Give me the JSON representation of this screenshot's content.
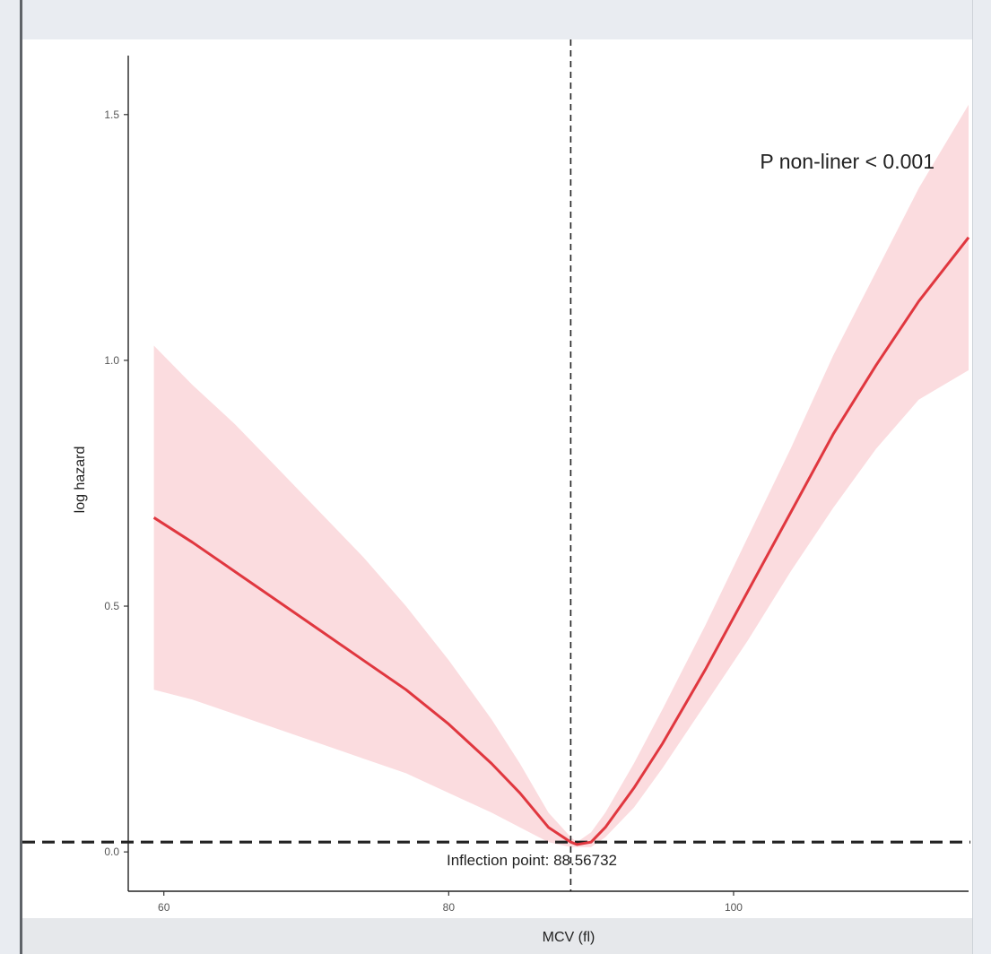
{
  "chart_data": {
    "type": "line",
    "xlabel": "MCV (fl)",
    "ylabel": "log hazard",
    "xlim": [
      57.5,
      116.5
    ],
    "ylim": [
      -0.08,
      1.62
    ],
    "xticks": [
      60,
      80,
      100
    ],
    "yticks": [
      0.0,
      0.5,
      1.0,
      1.5
    ],
    "xtick_labels": [
      "60",
      "80",
      "100"
    ],
    "ytick_labels": [
      "0.0",
      "0.5",
      "1.0",
      "1.5"
    ],
    "grid": false,
    "colors": {
      "line": "#e0373f",
      "band": "#fbdcdf",
      "reference": "#222222"
    },
    "series": [
      {
        "x": [
          59.3,
          62,
          65,
          68,
          71,
          74,
          77,
          80,
          83,
          85,
          87,
          88.57,
          89,
          90,
          91,
          92,
          93,
          95,
          98,
          101,
          104,
          107,
          110,
          113,
          116.5
        ],
        "y": [
          0.68,
          0.63,
          0.57,
          0.51,
          0.45,
          0.39,
          0.33,
          0.26,
          0.18,
          0.12,
          0.05,
          0.02,
          0.015,
          0.02,
          0.05,
          0.09,
          0.13,
          0.22,
          0.37,
          0.53,
          0.69,
          0.85,
          0.99,
          1.12,
          1.25
        ],
        "lower": [
          0.33,
          0.31,
          0.28,
          0.25,
          0.22,
          0.19,
          0.16,
          0.12,
          0.08,
          0.05,
          0.02,
          0.01,
          0.01,
          0.01,
          0.03,
          0.06,
          0.09,
          0.17,
          0.3,
          0.43,
          0.57,
          0.7,
          0.82,
          0.92,
          0.98
        ],
        "upper": [
          1.03,
          0.95,
          0.87,
          0.78,
          0.69,
          0.6,
          0.5,
          0.39,
          0.27,
          0.18,
          0.08,
          0.03,
          0.02,
          0.04,
          0.08,
          0.13,
          0.18,
          0.29,
          0.46,
          0.64,
          0.82,
          1.01,
          1.18,
          1.35,
          1.52
        ]
      }
    ],
    "reference_lines": {
      "vertical_x": 88.56732,
      "horizontal_y": 0.02
    },
    "annotations": {
      "p_value": "P non-liner < 0.001",
      "inflection": "Inflection point: 88.56732"
    }
  }
}
